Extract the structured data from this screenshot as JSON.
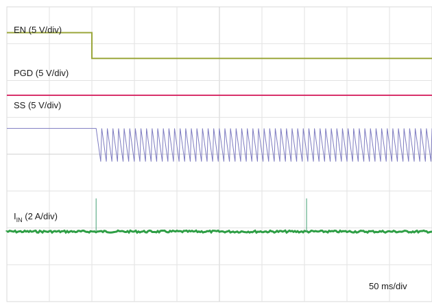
{
  "chart_data": {
    "type": "line",
    "grid": true,
    "divisions": {
      "x": 10,
      "y": 8
    },
    "series": [
      {
        "name": "EN (5 V/div)",
        "color": "#9aa63a",
        "low_div": 0.7,
        "high_div": 1.4,
        "step_at_div": 2.0
      },
      {
        "name": "PGD (5 V/div)",
        "color": "#d8306a",
        "level_div": 2.4
      },
      {
        "name": "SS (5 V/div)",
        "color": "#7d7bc0",
        "low_div": 3.3,
        "high_div": 4.2,
        "start_div": 2.1,
        "cycles": 60
      },
      {
        "name_main": "I",
        "name_sub": "IN",
        "name_rest": " (2 A/div)",
        "color": "#2e9e45",
        "level_div": 6.1,
        "spike_height_div": 0.9,
        "spike_at_div": [
          2.1,
          7.05
        ]
      }
    ],
    "timebase": "50 ms/div"
  }
}
